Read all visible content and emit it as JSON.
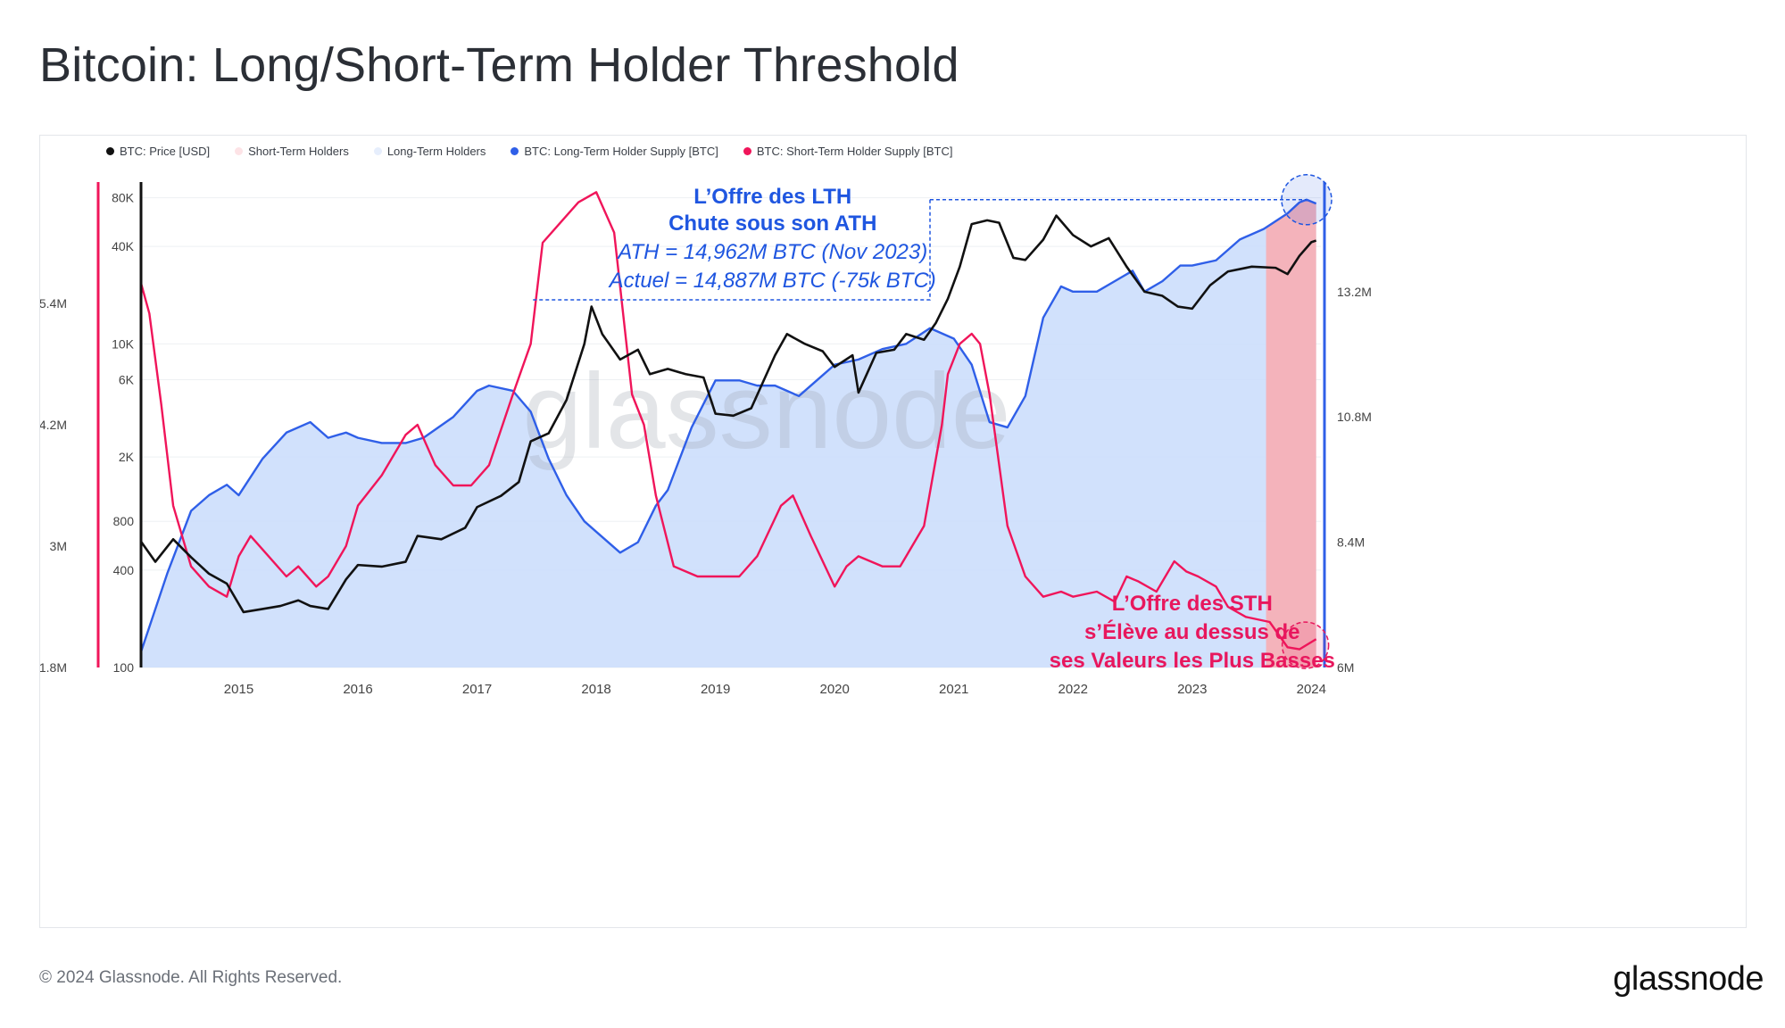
{
  "title": "Bitcoin: Long/Short-Term Holder Threshold",
  "footer": {
    "copyright": "© 2024 Glassnode. All Rights Reserved.",
    "logo": "glassnode"
  },
  "watermark": "glassnode",
  "colors": {
    "price": "#111111",
    "lth_line": "#2f5fe8",
    "sth_line": "#f0155a",
    "lth_fill": "#c9dcfb",
    "sth_fill": "#f7aeb4",
    "annotation_blue": "#1f56e0",
    "annotation_red": "#e8175d"
  },
  "chart_data": {
    "type": "line",
    "legend": [
      {
        "label": "BTC: Price [USD]",
        "color": "#111111"
      },
      {
        "label": "Short-Term Holders",
        "color": "#fde3e6"
      },
      {
        "label": "Long-Term Holders",
        "color": "#e6eefc"
      },
      {
        "label": "BTC: Long-Term Holder Supply [BTC]",
        "color": "#2f5fe8"
      },
      {
        "label": "BTC: Short-Term Holder Supply [BTC]",
        "color": "#f0155a"
      }
    ],
    "x_axis": {
      "range": [
        2014.18,
        2024.08
      ],
      "ticks": [
        "2015",
        "2016",
        "2017",
        "2018",
        "2019",
        "2020",
        "2021",
        "2022",
        "2023",
        "2024"
      ]
    },
    "price_axis": {
      "scale": "log",
      "range": [
        100,
        100000
      ],
      "ticks": [
        "80K",
        "40K",
        "10K",
        "6K",
        "2K",
        "800",
        "400",
        "100"
      ]
    },
    "sth_axis": {
      "range": [
        1800000,
        6600000
      ],
      "ticks": [
        "5.4M",
        "4.2M",
        "3M",
        "1.8M"
      ]
    },
    "lth_axis": {
      "range": [
        6000000,
        15300000
      ],
      "ticks": [
        "13.2M",
        "10.8M",
        "8.4M",
        "6M"
      ]
    },
    "series": [
      {
        "name": "BTC: Price [USD]",
        "axis": "price",
        "x": [
          2014.18,
          2014.3,
          2014.45,
          2014.6,
          2014.75,
          2014.9,
          2015.04,
          2015.2,
          2015.35,
          2015.5,
          2015.6,
          2015.75,
          2015.9,
          2016.0,
          2016.2,
          2016.4,
          2016.5,
          2016.7,
          2016.9,
          2017.0,
          2017.2,
          2017.35,
          2017.45,
          2017.6,
          2017.75,
          2017.9,
          2017.96,
          2018.05,
          2018.2,
          2018.35,
          2018.45,
          2018.6,
          2018.75,
          2018.9,
          2019.0,
          2019.15,
          2019.3,
          2019.5,
          2019.6,
          2019.75,
          2019.9,
          2020.0,
          2020.15,
          2020.2,
          2020.35,
          2020.5,
          2020.6,
          2020.75,
          2020.85,
          2020.95,
          2021.05,
          2021.15,
          2021.28,
          2021.38,
          2021.5,
          2021.6,
          2021.75,
          2021.86,
          2022.0,
          2022.15,
          2022.3,
          2022.45,
          2022.6,
          2022.75,
          2022.88,
          2023.0,
          2023.15,
          2023.3,
          2023.5,
          2023.7,
          2023.8,
          2023.9,
          2024.0,
          2024.04
        ],
        "y": [
          600,
          450,
          620,
          480,
          380,
          330,
          220,
          230,
          240,
          260,
          240,
          230,
          350,
          430,
          420,
          450,
          650,
          620,
          730,
          980,
          1150,
          1400,
          2500,
          2800,
          4500,
          10000,
          17000,
          11500,
          8000,
          9200,
          6500,
          7000,
          6500,
          6200,
          3700,
          3600,
          4000,
          8500,
          11500,
          10000,
          9000,
          7200,
          8500,
          5000,
          8800,
          9200,
          11500,
          10600,
          13500,
          19000,
          30000,
          55000,
          58000,
          56000,
          34000,
          33000,
          44000,
          62000,
          47000,
          40000,
          45000,
          30000,
          21000,
          19800,
          17000,
          16500,
          23000,
          28000,
          30000,
          29500,
          27000,
          35000,
          42500,
          43500
        ]
      },
      {
        "name": "BTC: Long-Term Holder Supply [BTC]",
        "axis": "lth",
        "x": [
          2014.18,
          2014.4,
          2014.6,
          2014.75,
          2014.9,
          2015.0,
          2015.2,
          2015.4,
          2015.6,
          2015.75,
          2015.9,
          2016.0,
          2016.2,
          2016.4,
          2016.55,
          2016.8,
          2017.0,
          2017.1,
          2017.3,
          2017.45,
          2017.6,
          2017.75,
          2017.9,
          2018.0,
          2018.2,
          2018.35,
          2018.5,
          2018.6,
          2018.8,
          2019.0,
          2019.2,
          2019.35,
          2019.5,
          2019.7,
          2019.9,
          2020.0,
          2020.2,
          2020.4,
          2020.6,
          2020.8,
          2020.9,
          2021.0,
          2021.15,
          2021.3,
          2021.45,
          2021.6,
          2021.75,
          2021.9,
          2022.0,
          2022.2,
          2022.35,
          2022.5,
          2022.6,
          2022.75,
          2022.9,
          2023.0,
          2023.2,
          2023.4,
          2023.6,
          2023.8,
          2023.9,
          2023.96,
          2024.04
        ],
        "y": [
          6300,
          7800,
          9000,
          9300,
          9500,
          9300,
          10000,
          10500,
          10700,
          10400,
          10500,
          10400,
          10300,
          10300,
          10400,
          10800,
          11300,
          11400,
          11300,
          10900,
          10000,
          9300,
          8800,
          8600,
          8200,
          8400,
          9100,
          9400,
          10600,
          11500,
          11500,
          11400,
          11400,
          11200,
          11600,
          11800,
          11900,
          12100,
          12200,
          12500,
          12400,
          12300,
          11800,
          10700,
          10600,
          11200,
          12700,
          13300,
          13200,
          13200,
          13400,
          13600,
          13200,
          13400,
          13700,
          13700,
          13800,
          14200,
          14400,
          14700,
          14910,
          14962,
          14887
        ]
      },
      {
        "name": "BTC: Short-Term Holder Supply [BTC]",
        "axis": "sth",
        "x": [
          2014.18,
          2014.25,
          2014.35,
          2014.45,
          2014.6,
          2014.75,
          2014.9,
          2015.0,
          2015.1,
          2015.25,
          2015.4,
          2015.5,
          2015.65,
          2015.75,
          2015.9,
          2016.0,
          2016.2,
          2016.4,
          2016.5,
          2016.65,
          2016.8,
          2016.95,
          2017.1,
          2017.3,
          2017.45,
          2017.55,
          2017.7,
          2017.85,
          2018.0,
          2018.15,
          2018.3,
          2018.4,
          2018.5,
          2018.65,
          2018.85,
          2019.0,
          2019.2,
          2019.35,
          2019.55,
          2019.65,
          2019.8,
          2020.0,
          2020.1,
          2020.2,
          2020.4,
          2020.55,
          2020.6,
          2020.75,
          2020.9,
          2020.95,
          2021.05,
          2021.15,
          2021.22,
          2021.3,
          2021.45,
          2021.6,
          2021.75,
          2021.9,
          2022.0,
          2022.2,
          2022.35,
          2022.45,
          2022.55,
          2022.7,
          2022.85,
          2022.95,
          2023.05,
          2023.2,
          2023.3,
          2023.45,
          2023.65,
          2023.8,
          2023.9,
          2024.04
        ],
        "y": [
          5600,
          5300,
          4400,
          3400,
          2800,
          2600,
          2500,
          2900,
          3100,
          2900,
          2700,
          2800,
          2600,
          2700,
          3000,
          3400,
          3700,
          4100,
          4200,
          3800,
          3600,
          3600,
          3800,
          4500,
          5000,
          6000,
          6200,
          6400,
          6500,
          6100,
          4500,
          4200,
          3500,
          2800,
          2700,
          2700,
          2700,
          2900,
          3400,
          3500,
          3100,
          2600,
          2800,
          2900,
          2800,
          2800,
          2900,
          3200,
          4200,
          4700,
          5000,
          5100,
          5000,
          4500,
          3200,
          2700,
          2500,
          2550,
          2500,
          2550,
          2450,
          2700,
          2650,
          2550,
          2850,
          2750,
          2700,
          2600,
          2400,
          2300,
          2250,
          2000,
          1980,
          2080
        ]
      }
    ],
    "shaded_region": {
      "name": "Short-Term Holders",
      "x_start": 2023.62,
      "x_end": 2024.04
    },
    "annotations": [
      {
        "lines": [
          "L’Offre des LTH",
          "Chute sous son ATH"
        ],
        "detail": [
          "ATH = 14,962M BTC (Nov 2023)",
          "Actuel = 14,887M BTC (-75k BTC)"
        ]
      },
      {
        "lines": [
          "L’Offre des STH",
          "s’Élève au dessus de",
          "ses Valeurs les Plus Basses"
        ]
      }
    ]
  }
}
